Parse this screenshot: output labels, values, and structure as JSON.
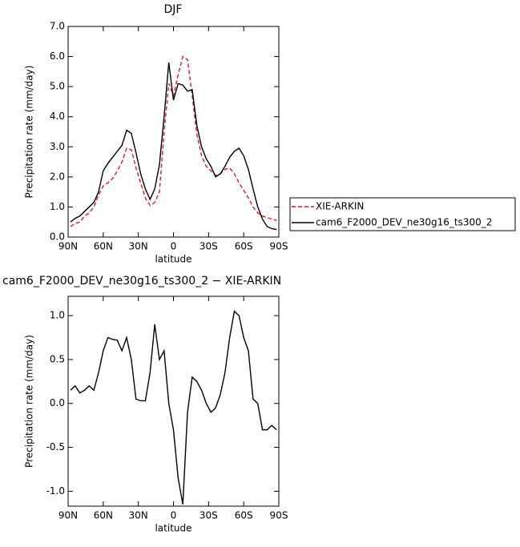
{
  "chart_data": [
    {
      "type": "line",
      "title": "DJF",
      "xlabel": "latitude",
      "ylabel": "Precipitation rate (mm/day)",
      "x": [
        88,
        84,
        80,
        76,
        72,
        68,
        64,
        60,
        56,
        52,
        48,
        44,
        40,
        36,
        32,
        28,
        24,
        20,
        16,
        12,
        8,
        4,
        0,
        -4,
        -8,
        -12,
        -16,
        -20,
        -24,
        -28,
        -32,
        -36,
        -40,
        -44,
        -48,
        -52,
        -56,
        -60,
        -64,
        -68,
        -72,
        -76,
        -80,
        -84,
        -88
      ],
      "xlim": [
        90,
        -90
      ],
      "xticks": [
        {
          "value": 90,
          "label": "90N"
        },
        {
          "value": 60,
          "label": "60N"
        },
        {
          "value": 30,
          "label": "30N"
        },
        0,
        {
          "value": -30,
          "label": "30S"
        },
        {
          "value": -60,
          "label": "60S"
        },
        {
          "value": -90,
          "label": "90S"
        }
      ],
      "ylim": [
        0,
        7
      ],
      "yticks": [
        {
          "value": 0,
          "label": "0.0"
        },
        {
          "value": 1,
          "label": "1.0"
        },
        {
          "value": 2,
          "label": "2.0"
        },
        {
          "value": 3,
          "label": "3.0"
        },
        {
          "value": 4,
          "label": "4.0"
        },
        {
          "value": 5,
          "label": "5.0"
        },
        {
          "value": 6,
          "label": "6.0"
        },
        {
          "value": 7,
          "label": "7.0"
        }
      ],
      "legend": "right",
      "series": [
        {
          "name": "XIE-ARKIN",
          "color": "#e41a1c",
          "line_style": "dashed",
          "values": [
            0.35,
            0.45,
            0.5,
            0.7,
            0.8,
            1.0,
            1.4,
            1.7,
            1.8,
            1.95,
            2.2,
            2.5,
            2.95,
            2.9,
            2.3,
            1.8,
            1.3,
            1.05,
            1.15,
            1.5,
            3.5,
            5.1,
            4.7,
            5.4,
            6.0,
            5.9,
            4.7,
            3.4,
            2.7,
            2.35,
            2.2,
            2.05,
            2.1,
            2.25,
            2.3,
            2.1,
            1.8,
            1.55,
            1.3,
            1.0,
            0.8,
            0.7,
            0.65,
            0.6,
            0.55
          ]
        },
        {
          "name": "cam6_F2000_DEV_ne30g16_ts300_2",
          "color": "#000000",
          "line_style": "solid",
          "values": [
            0.5,
            0.62,
            0.7,
            0.85,
            1.0,
            1.15,
            1.5,
            2.2,
            2.45,
            2.65,
            2.85,
            3.05,
            3.55,
            3.45,
            2.8,
            2.1,
            1.6,
            1.25,
            1.6,
            2.4,
            4.0,
            5.8,
            4.55,
            5.1,
            5.05,
            4.85,
            4.9,
            3.7,
            3.0,
            2.6,
            2.35,
            2.0,
            2.1,
            2.35,
            2.65,
            2.85,
            2.95,
            2.7,
            2.25,
            1.6,
            1.0,
            0.6,
            0.35,
            0.28,
            0.25
          ]
        }
      ]
    },
    {
      "type": "line",
      "title": "cam6_F2000_DEV_ne30g16_ts300_2 − XIE-ARKIN",
      "xlabel": "latitude",
      "ylabel": "Precipitation rate (mm/day)",
      "x": [
        88,
        84,
        80,
        76,
        72,
        68,
        64,
        60,
        56,
        52,
        48,
        44,
        40,
        36,
        32,
        28,
        24,
        20,
        16,
        12,
        8,
        4,
        0,
        -4,
        -8,
        -12,
        -16,
        -20,
        -24,
        -28,
        -32,
        -36,
        -40,
        -44,
        -48,
        -52,
        -56,
        -60,
        -64,
        -68,
        -72,
        -76,
        -80,
        -84,
        -88
      ],
      "xlim": [
        90,
        -90
      ],
      "xticks": [
        {
          "value": 90,
          "label": "90N"
        },
        {
          "value": 60,
          "label": "60N"
        },
        {
          "value": 30,
          "label": "30N"
        },
        0,
        {
          "value": -30,
          "label": "30S"
        },
        {
          "value": -60,
          "label": "60S"
        },
        {
          "value": -90,
          "label": "90S"
        }
      ],
      "ylim": [
        -1.17,
        1.22
      ],
      "yticks": [
        {
          "value": -1,
          "label": "-1.0"
        },
        -0.5,
        {
          "value": 0,
          "label": "0.0"
        },
        0.5,
        {
          "value": 1,
          "label": "1.0"
        }
      ],
      "series": [
        {
          "color": "#000000",
          "line_style": "solid",
          "values": [
            0.15,
            0.2,
            0.12,
            0.15,
            0.2,
            0.15,
            0.35,
            0.6,
            0.75,
            0.73,
            0.72,
            0.6,
            0.75,
            0.5,
            0.05,
            0.03,
            0.03,
            0.35,
            0.9,
            0.5,
            0.6,
            0.0,
            -0.3,
            -0.85,
            -1.15,
            -0.1,
            0.3,
            0.25,
            0.15,
            0.0,
            -0.1,
            -0.05,
            0.1,
            0.35,
            0.75,
            1.05,
            1.0,
            0.75,
            0.6,
            0.05,
            0.0,
            -0.3,
            -0.3,
            -0.25,
            -0.3
          ]
        }
      ]
    }
  ]
}
